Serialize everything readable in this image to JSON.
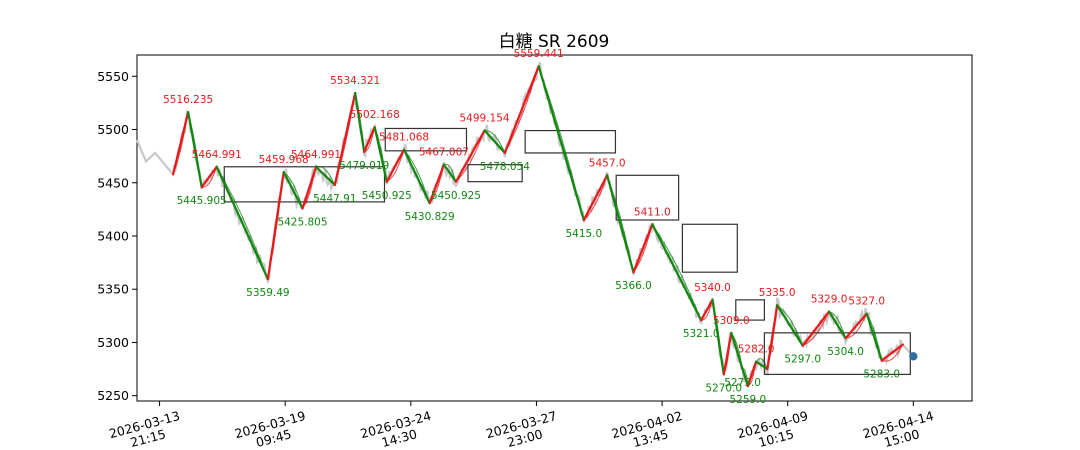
{
  "chart_data": {
    "type": "line",
    "title": "白糖 SR 2609",
    "xlabel": "",
    "ylabel": "",
    "ylim": [
      5245,
      5570
    ],
    "xlim": [
      -30,
      1080
    ],
    "grid": false,
    "y_ticks": [
      5250,
      5300,
      5350,
      5400,
      5450,
      5500,
      5550
    ],
    "x_ticks": [
      {
        "x": 0,
        "line1": "2026-03-13",
        "line2": "21:15"
      },
      {
        "x": 167,
        "line1": "2026-03-19",
        "line2": "09:45"
      },
      {
        "x": 334,
        "line1": "2026-03-24",
        "line2": "14:30"
      },
      {
        "x": 501,
        "line1": "2026-03-27",
        "line2": "23:00"
      },
      {
        "x": 668,
        "line1": "2026-04-02",
        "line2": "13:45"
      },
      {
        "x": 835,
        "line1": "2026-04-09",
        "line2": "10:15"
      },
      {
        "x": 1002,
        "line1": "2026-04-14",
        "line2": "15:00"
      }
    ],
    "colors": {
      "up": "#e8191b",
      "down": "#118711",
      "price": "#c8c8c8",
      "box": "#333333",
      "last": "#2f6f9f"
    },
    "pivots": [
      {
        "x": 18,
        "price": 5458,
        "label": ""
      },
      {
        "x": 38,
        "price": 5516.235,
        "label": "5516.235"
      },
      {
        "x": 56,
        "price": 5445.905,
        "label": "5445.905"
      },
      {
        "x": 76,
        "price": 5464.991,
        "label": "5464.991"
      },
      {
        "x": 144,
        "price": 5359.49,
        "label": "5359.49"
      },
      {
        "x": 165,
        "price": 5459.968,
        "label": "5459.968"
      },
      {
        "x": 190,
        "price": 5425.805,
        "label": "5425.805"
      },
      {
        "x": 208,
        "price": 5464.991,
        "label": "5464.991"
      },
      {
        "x": 233,
        "price": 5447.91,
        "label": "5447.91"
      },
      {
        "x": 260,
        "price": 5534.321,
        "label": "5534.321"
      },
      {
        "x": 272,
        "price": 5479.019,
        "label": "5479.019"
      },
      {
        "x": 286,
        "price": 5502.168,
        "label": "5502.168"
      },
      {
        "x": 302,
        "price": 5450.925,
        "label": "5450.925"
      },
      {
        "x": 325,
        "price": 5481.068,
        "label": "5481.068"
      },
      {
        "x": 359,
        "price": 5430.829,
        "label": "5430.829"
      },
      {
        "x": 378,
        "price": 5467.007,
        "label": "5467.007"
      },
      {
        "x": 394,
        "price": 5450.925,
        "label": "5450.925"
      },
      {
        "x": 432,
        "price": 5499.154,
        "label": "5499.154"
      },
      {
        "x": 459,
        "price": 5478.054,
        "label": "5478.054"
      },
      {
        "x": 504,
        "price": 5559.441,
        "label": "5559.441"
      },
      {
        "x": 564,
        "price": 5415.0,
        "label": "5415.0"
      },
      {
        "x": 595,
        "price": 5457.0,
        "label": "5457.0"
      },
      {
        "x": 630,
        "price": 5366.0,
        "label": "5366.0"
      },
      {
        "x": 655,
        "price": 5411.0,
        "label": "5411.0"
      },
      {
        "x": 720,
        "price": 5321.0,
        "label": "5321.0"
      },
      {
        "x": 735,
        "price": 5340.0,
        "label": "5340.0"
      },
      {
        "x": 750,
        "price": 5270.0,
        "label": "5270.0"
      },
      {
        "x": 760,
        "price": 5309.0,
        "label": "5309.0"
      },
      {
        "x": 775,
        "price": 5275.0,
        "label": "5275.0"
      },
      {
        "x": 782,
        "price": 5259.0,
        "label": "5259.0"
      },
      {
        "x": 793,
        "price": 5282.0,
        "label": "5282.0"
      },
      {
        "x": 808,
        "price": 5275.0,
        "label": ""
      },
      {
        "x": 821,
        "price": 5335.0,
        "label": "5335.0"
      },
      {
        "x": 855,
        "price": 5297.0,
        "label": "5297.0"
      },
      {
        "x": 890,
        "price": 5329.0,
        "label": "5329.0"
      },
      {
        "x": 912,
        "price": 5304.0,
        "label": "5304.0"
      },
      {
        "x": 940,
        "price": 5327.0,
        "label": "5327.0"
      },
      {
        "x": 960,
        "price": 5283.0,
        "label": "5283.0"
      },
      {
        "x": 988,
        "price": 5298.0,
        "label": ""
      }
    ],
    "boxes": [
      {
        "x0": 86,
        "x1": 299,
        "y0": 5432,
        "y1": 5465
      },
      {
        "x0": 300,
        "x1": 408,
        "y0": 5480,
        "y1": 5501
      },
      {
        "x0": 410,
        "x1": 482,
        "y0": 5451,
        "y1": 5467
      },
      {
        "x0": 486,
        "x1": 606,
        "y0": 5478,
        "y1": 5499
      },
      {
        "x0": 607,
        "x1": 690,
        "y0": 5415,
        "y1": 5457
      },
      {
        "x0": 695,
        "x1": 768,
        "y0": 5366,
        "y1": 5411
      },
      {
        "x0": 766,
        "x1": 804,
        "y0": 5321,
        "y1": 5340
      },
      {
        "x0": 804,
        "x1": 998,
        "y0": 5270,
        "y1": 5309
      }
    ],
    "last_point": {
      "x": 1002,
      "price": 5287
    }
  }
}
